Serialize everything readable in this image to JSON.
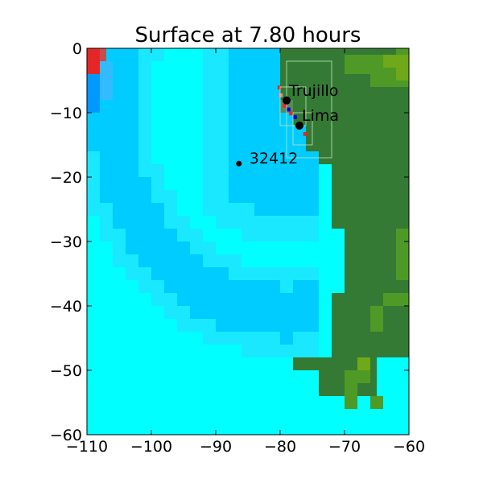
{
  "chart_data": {
    "type": "heatmap",
    "title": "Surface at 7.80 hours",
    "xlabel": "",
    "ylabel": "",
    "xlim": [
      -110,
      -60
    ],
    "ylim": [
      -60,
      0
    ],
    "xticks": [
      -110,
      -100,
      -90,
      -80,
      -70,
      -60
    ],
    "yticks": [
      0,
      -10,
      -20,
      -30,
      -40,
      -50,
      -60
    ],
    "xtick_labels": [
      "−110",
      "−100",
      "−90",
      "−80",
      "−70",
      "−60"
    ],
    "ytick_labels": [
      "0",
      "−10",
      "−20",
      "−30",
      "−40",
      "−50",
      "−60"
    ],
    "grid": false,
    "colors": {
      "ocean": "#00ffff",
      "ocean_mid": "#1ae8ff",
      "ocean_deep": "#00ccff",
      "ocean_dark": "#0099ff",
      "land": "#347a34",
      "land_light": "#4f9a26",
      "land_bright": "#6fa818",
      "wave_red": "#e62626",
      "wave_blue": "#0000e6"
    },
    "points": [
      {
        "name": "Trujillo",
        "x": -79.0,
        "y": -8.1
      },
      {
        "name": "Lima",
        "x": -77.0,
        "y": -12.0
      },
      {
        "name": "32412",
        "x": -86.4,
        "y": -17.9
      }
    ]
  }
}
